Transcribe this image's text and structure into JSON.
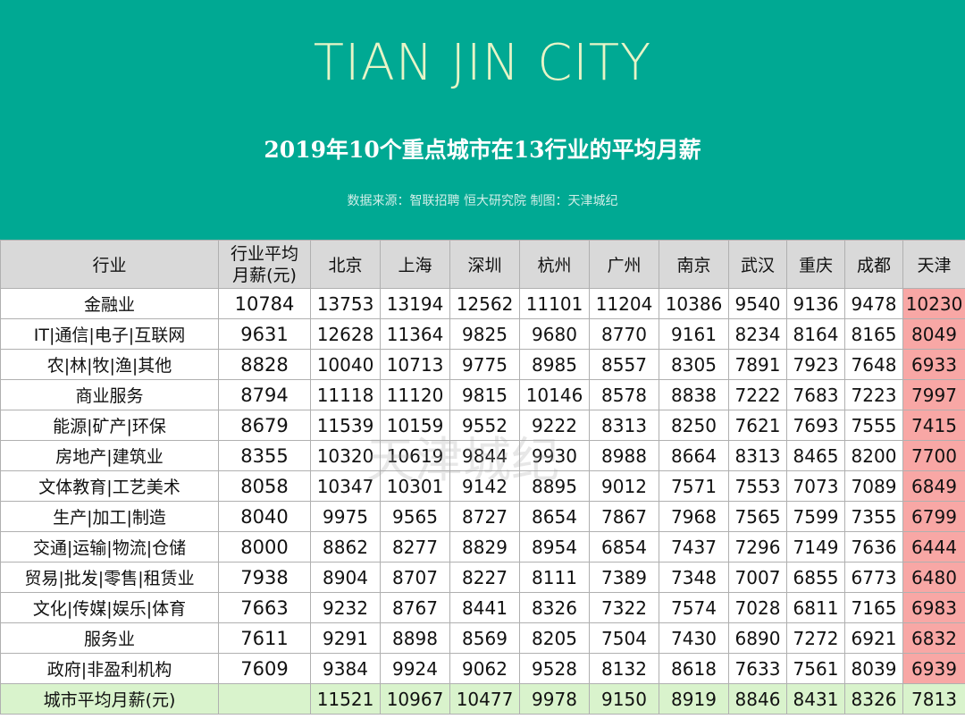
{
  "header": {
    "brand": "TIAN JIN CITY",
    "title": "2019年10个重点城市在13行业的平均月薪",
    "source": "数据来源：智联招聘 恒大研究院    制图：天津城纪"
  },
  "colors": {
    "header_bg": "#00a993",
    "tianjin_highlight": "#f8a7a5",
    "footer_bg": "#d9f3cc",
    "table_header_bg": "#d9d9d9"
  },
  "table": {
    "headers": {
      "industry": "行业",
      "avg_line1": "行业平均",
      "avg_line2": "月薪(元)",
      "cities": [
        "北京",
        "上海",
        "深圳",
        "杭州",
        "广州",
        "南京",
        "武汉",
        "重庆",
        "成都",
        "天津"
      ]
    },
    "rows": [
      {
        "industry": "金融业",
        "avg": "10784",
        "values": [
          "13753",
          "13194",
          "12562",
          "11101",
          "11204",
          "10386",
          "9540",
          "9136",
          "9478",
          "10230"
        ]
      },
      {
        "industry": "IT|通信|电子|互联网",
        "avg": "9631",
        "values": [
          "12628",
          "11364",
          "9825",
          "9680",
          "8770",
          "9161",
          "8234",
          "8164",
          "8165",
          "8049"
        ]
      },
      {
        "industry": "农|林|牧|渔|其他",
        "avg": "8828",
        "values": [
          "10040",
          "10713",
          "9775",
          "8985",
          "8557",
          "8305",
          "7891",
          "7923",
          "7648",
          "6933"
        ]
      },
      {
        "industry": "商业服务",
        "avg": "8794",
        "values": [
          "11118",
          "11120",
          "9815",
          "10146",
          "8578",
          "8838",
          "7222",
          "7683",
          "7223",
          "7997"
        ]
      },
      {
        "industry": "能源|矿产|环保",
        "avg": "8679",
        "values": [
          "11539",
          "10159",
          "9552",
          "9222",
          "8313",
          "8250",
          "7621",
          "7693",
          "7555",
          "7415"
        ]
      },
      {
        "industry": "房地产|建筑业",
        "avg": "8355",
        "values": [
          "10320",
          "10619",
          "9844",
          "9930",
          "8988",
          "8664",
          "8313",
          "8465",
          "8200",
          "7700"
        ]
      },
      {
        "industry": "文体教育|工艺美术",
        "avg": "8058",
        "values": [
          "10347",
          "10301",
          "9142",
          "8895",
          "9012",
          "7571",
          "7553",
          "7073",
          "7089",
          "6849"
        ]
      },
      {
        "industry": "生产|加工|制造",
        "avg": "8040",
        "values": [
          "9975",
          "9565",
          "8727",
          "8654",
          "7867",
          "7968",
          "7565",
          "7599",
          "7355",
          "6799"
        ]
      },
      {
        "industry": "交通|运输|物流|仓储",
        "avg": "8000",
        "values": [
          "8862",
          "8277",
          "8829",
          "8954",
          "6854",
          "7437",
          "7296",
          "7149",
          "7636",
          "6444"
        ]
      },
      {
        "industry": "贸易|批发|零售|租赁业",
        "avg": "7938",
        "values": [
          "8904",
          "8707",
          "8227",
          "8111",
          "7389",
          "7348",
          "7007",
          "6855",
          "6773",
          "6480"
        ]
      },
      {
        "industry": "文化|传媒|娱乐|体育",
        "avg": "7663",
        "values": [
          "9232",
          "8767",
          "8441",
          "8326",
          "7322",
          "7574",
          "7028",
          "6811",
          "7165",
          "6983"
        ]
      },
      {
        "industry": "服务业",
        "avg": "7611",
        "values": [
          "9291",
          "8898",
          "8569",
          "8205",
          "7504",
          "7430",
          "6890",
          "7272",
          "6921",
          "6832"
        ]
      },
      {
        "industry": "政府|非盈利机构",
        "avg": "7609",
        "values": [
          "9384",
          "9924",
          "9062",
          "9528",
          "8132",
          "8618",
          "7633",
          "7561",
          "8039",
          "6939"
        ]
      }
    ],
    "footer": {
      "label": "城市平均月薪(元)",
      "avg": "",
      "values": [
        "11521",
        "10967",
        "10477",
        "9978",
        "9150",
        "8919",
        "8846",
        "8431",
        "8326",
        "7813"
      ]
    }
  },
  "watermark": "天津城纪"
}
